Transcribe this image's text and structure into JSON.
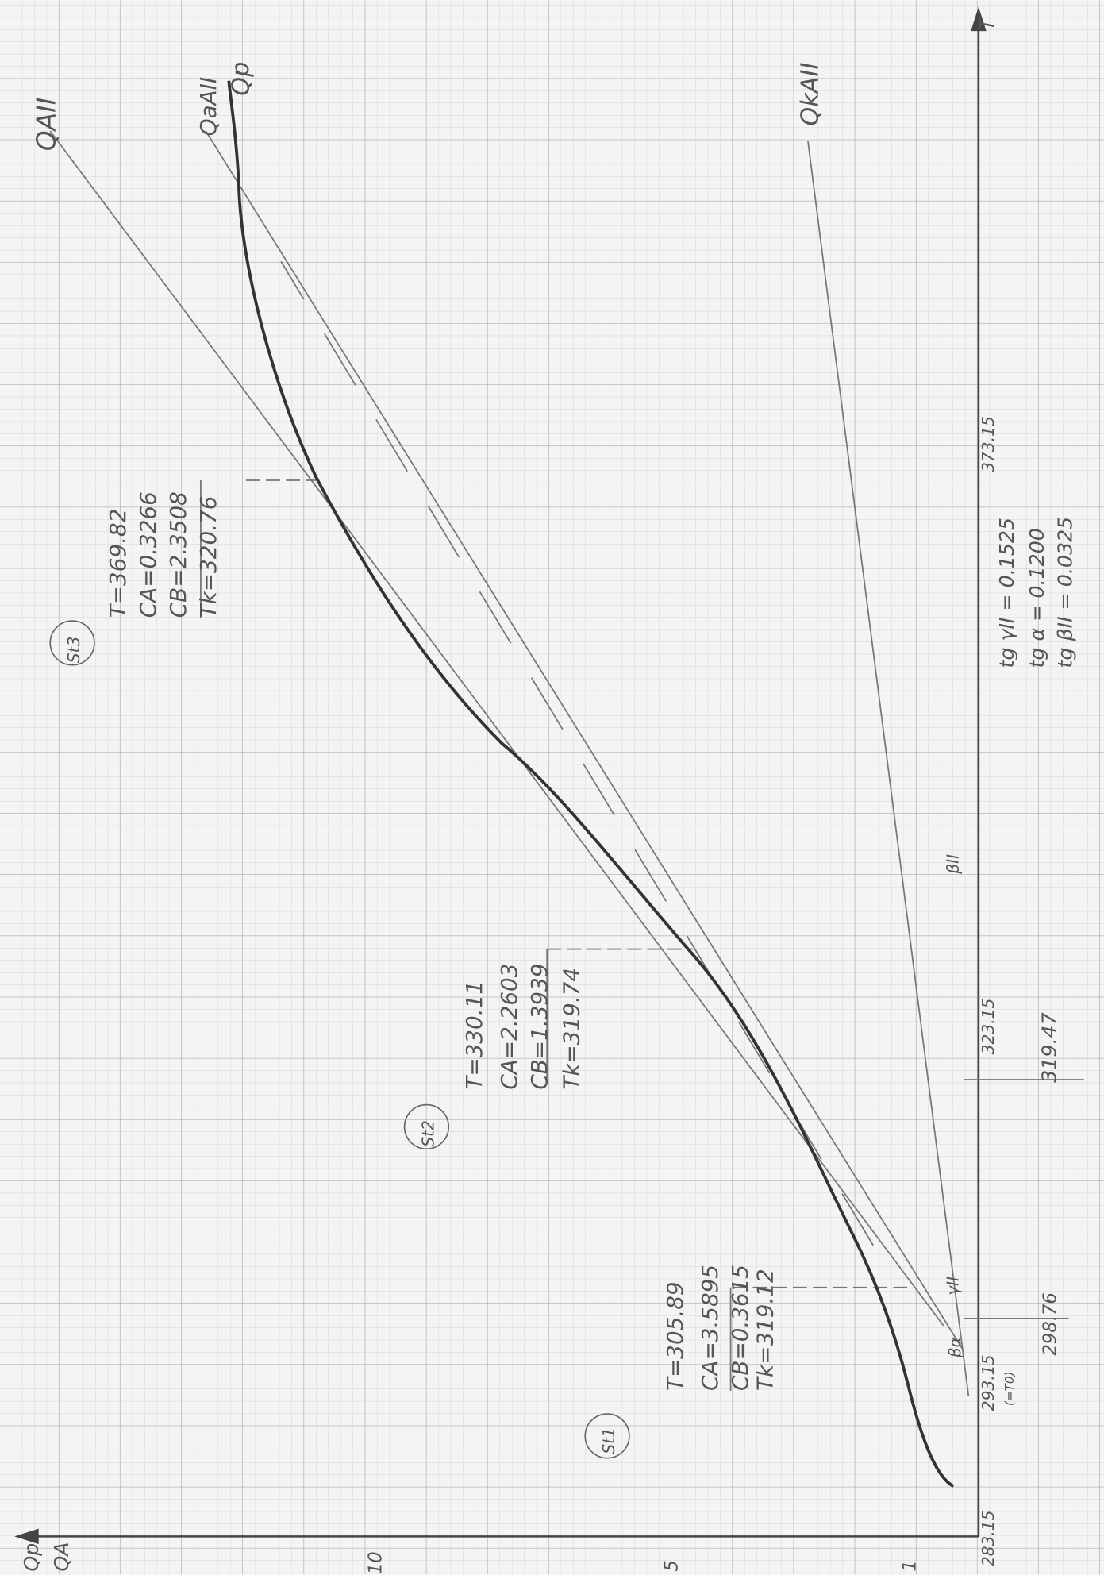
{
  "axes": {
    "value_label_top": "Qp",
    "value_label_bottom": "QA",
    "t_label": "T",
    "t_ticks": [
      "283.15",
      "293.15",
      "(=T0)",
      "298.76",
      "323.15",
      "319.47",
      "373.15"
    ],
    "value_ticks": [
      "1",
      "5",
      "10"
    ]
  },
  "curve_labels": [
    "QAII",
    "QaAII",
    "Qp",
    "QkAII"
  ],
  "states": [
    {
      "name": "St1",
      "lines": [
        "T=305.89",
        "CA=3.5895",
        "CB=0.3615",
        "Tk=319.12"
      ]
    },
    {
      "name": "St2",
      "lines": [
        "T=330.11",
        "CA=2.2603",
        "CB=1.3939",
        "Tk=319.74"
      ]
    },
    {
      "name": "St3",
      "lines": [
        "T=369.82",
        "CA=0.3266",
        "CB=2.3508",
        "Tk=320.76"
      ]
    }
  ],
  "tangents": [
    "tg γII = 0.1525",
    "tg α = 0.1200",
    "tg βII = 0.0325"
  ],
  "angles": [
    "βII",
    "γII",
    "βα"
  ]
}
